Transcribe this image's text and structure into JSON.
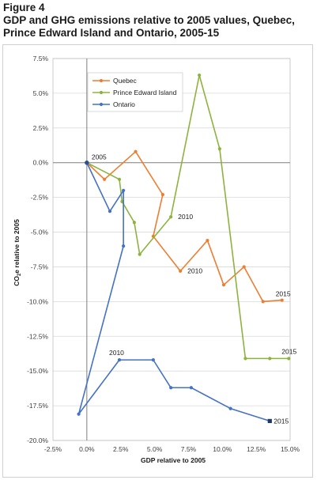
{
  "figure": {
    "label": "Figure 4",
    "title_line1": "GDP and GHG emissions relative to 2005 values, Quebec,",
    "title_line2": "Prince Edward Island and Ontario, 2005-15"
  },
  "chart_data": {
    "type": "scatter",
    "mode": "lines+markers",
    "title": "GDP and GHG emissions relative to 2005 values, Quebec, Prince Edward Island and Ontario, 2005-15",
    "xlabel": "GDP relative to 2005",
    "ylabel_prefix": "CO",
    "ylabel_sub": "2",
    "ylabel_suffix": "e relative to 2005",
    "xlim": [
      -2.5,
      15.0
    ],
    "ylim": [
      -20.0,
      7.5
    ],
    "x_ticks": [
      -2.5,
      0.0,
      2.5,
      5.0,
      7.5,
      10.0,
      12.5,
      15.0
    ],
    "y_ticks": [
      7.5,
      5.0,
      2.5,
      0.0,
      -2.5,
      -5.0,
      -7.5,
      -10.0,
      -12.5,
      -15.0,
      -17.5,
      -20.0
    ],
    "x_tick_labels": [
      "-2.5%",
      "0.0%",
      "2.5%",
      "5.0%",
      "7.5%",
      "10.0%",
      "12.5%",
      "15.0%"
    ],
    "y_tick_labels": [
      "7.5%",
      "5.0%",
      "2.5%",
      "0.0%",
      "-2.5%",
      "-5.0%",
      "-7.5%",
      "-10.0%",
      "-12.5%",
      "-15.0%",
      "-17.5%",
      "-20.0%"
    ],
    "grid": "horizontal",
    "legend_position": "top-left",
    "series": [
      {
        "name": "Quebec",
        "color": "#ED7D31",
        "points": [
          {
            "year": 2005,
            "x": 0.0,
            "y": 0.0
          },
          {
            "year": 2006,
            "x": 1.3,
            "y": -1.2
          },
          {
            "year": 2007,
            "x": 3.6,
            "y": 0.8
          },
          {
            "year": 2008,
            "x": 5.6,
            "y": -2.3
          },
          {
            "year": 2009,
            "x": 4.9,
            "y": -5.3
          },
          {
            "year": 2010,
            "x": 6.9,
            "y": -7.8
          },
          {
            "year": 2011,
            "x": 8.9,
            "y": -5.6
          },
          {
            "year": 2012,
            "x": 10.1,
            "y": -8.8
          },
          {
            "year": 2013,
            "x": 11.6,
            "y": -7.5
          },
          {
            "year": 2014,
            "x": 13.0,
            "y": -10.0
          },
          {
            "year": 2015,
            "x": 14.4,
            "y": -9.9
          }
        ]
      },
      {
        "name": "Prince Edward Island",
        "color": "#8DB33E",
        "points": [
          {
            "year": 2005,
            "x": 0.0,
            "y": 0.0
          },
          {
            "year": 2006,
            "x": 2.4,
            "y": -1.2
          },
          {
            "year": 2007,
            "x": 2.6,
            "y": -2.8
          },
          {
            "year": 2008,
            "x": 3.5,
            "y": -4.3
          },
          {
            "year": 2009,
            "x": 3.9,
            "y": -6.6
          },
          {
            "year": 2010,
            "x": 6.2,
            "y": -3.9
          },
          {
            "year": 2011,
            "x": 8.3,
            "y": 6.3
          },
          {
            "year": 2012,
            "x": 9.8,
            "y": 1.0
          },
          {
            "year": 2013,
            "x": 11.7,
            "y": -14.1
          },
          {
            "year": 2014,
            "x": 13.5,
            "y": -14.1
          },
          {
            "year": 2015,
            "x": 14.9,
            "y": -14.1
          }
        ]
      },
      {
        "name": "Ontario",
        "color": "#4472C4",
        "points": [
          {
            "year": 2005,
            "x": 0.0,
            "y": 0.0
          },
          {
            "year": 2006,
            "x": 1.7,
            "y": -3.5
          },
          {
            "year": 2007,
            "x": 2.7,
            "y": -2.0
          },
          {
            "year": 2008,
            "x": 2.7,
            "y": -6.0
          },
          {
            "year": 2009,
            "x": -0.6,
            "y": -18.1
          },
          {
            "year": 2010,
            "x": 2.4,
            "y": -14.2
          },
          {
            "year": 2011,
            "x": 4.9,
            "y": -14.2
          },
          {
            "year": 2012,
            "x": 6.2,
            "y": -16.2
          },
          {
            "year": 2013,
            "x": 7.7,
            "y": -16.2
          },
          {
            "year": 2014,
            "x": 10.6,
            "y": -17.7
          },
          {
            "year": 2015,
            "x": 13.5,
            "y": -18.6
          }
        ]
      }
    ],
    "annotations": [
      {
        "text": "2005",
        "series": "Ontario",
        "year": 2005
      },
      {
        "text": "2010",
        "series": "Prince Edward Island",
        "year": 2010
      },
      {
        "text": "2010",
        "series": "Quebec",
        "year": 2010
      },
      {
        "text": "2015",
        "series": "Quebec",
        "year": 2015
      },
      {
        "text": "2015",
        "series": "Prince Edward Island",
        "year": 2015
      },
      {
        "text": "2010",
        "series": "Ontario",
        "year": 2010
      },
      {
        "text": "2015",
        "series": "Ontario",
        "year": 2015
      }
    ]
  }
}
